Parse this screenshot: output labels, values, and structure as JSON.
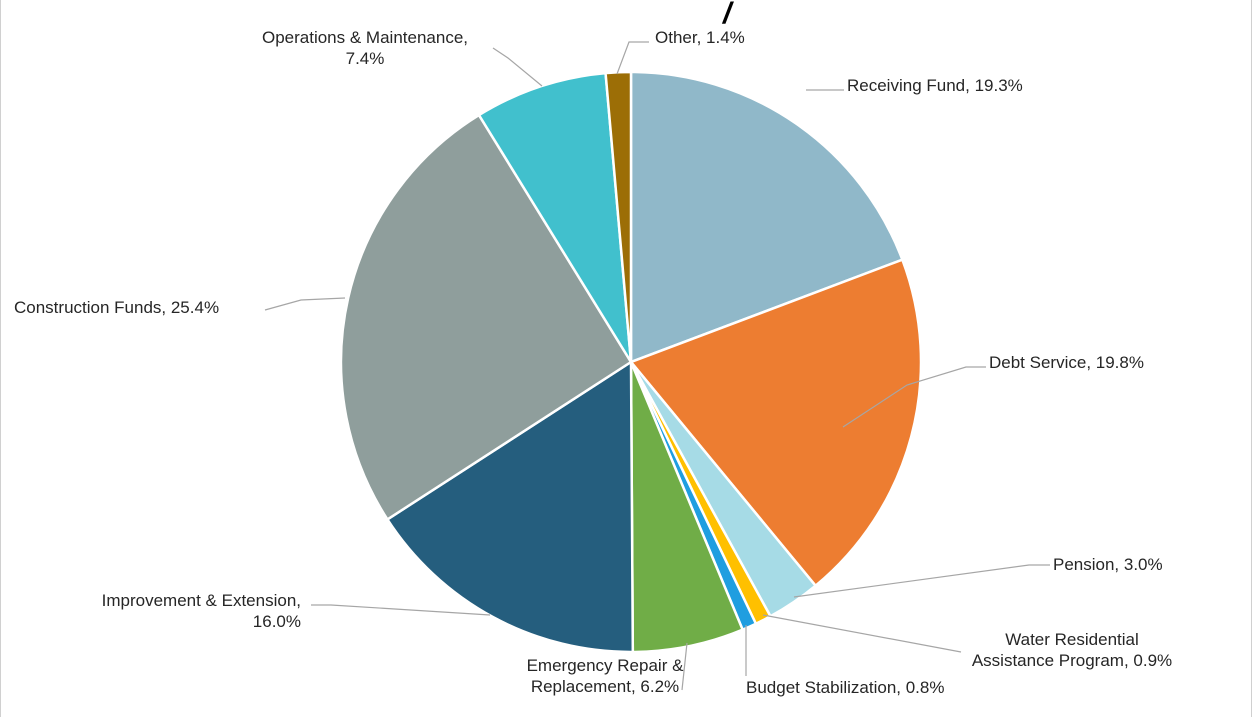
{
  "chart_data": {
    "type": "pie",
    "title_fragment": "/",
    "slices": [
      {
        "name": "Receiving Fund",
        "value": 19.3,
        "label": [
          "Receiving Fund, 19.3%"
        ],
        "color": "#90b8c9"
      },
      {
        "name": "Debt Service",
        "value": 19.8,
        "label": [
          "Debt Service, 19.8%"
        ],
        "color": "#ed7d31"
      },
      {
        "name": "Pension",
        "value": 3.0,
        "label": [
          "Pension, 3.0%"
        ],
        "color": "#a6dbe6"
      },
      {
        "name": "Water Residential Assistance Program",
        "value": 0.9,
        "label": [
          "Water Residential",
          "Assistance Program, 0.9%"
        ],
        "color": "#ffc000"
      },
      {
        "name": "Budget Stabilization",
        "value": 0.8,
        "label": [
          "Budget Stabilization, 0.8%"
        ],
        "color": "#1f9ee0"
      },
      {
        "name": "Emergency Repair & Replacement",
        "value": 6.2,
        "label": [
          "Emergency Repair &",
          "Replacement, 6.2%"
        ],
        "color": "#70ad47"
      },
      {
        "name": "Improvement & Extension",
        "value": 16.0,
        "label": [
          "Improvement & Extension,",
          "16.0%"
        ],
        "color": "#255e7e"
      },
      {
        "name": "Construction Funds",
        "value": 25.4,
        "label": [
          "Construction Funds, 25.4%"
        ],
        "color": "#8f9e9c"
      },
      {
        "name": "Operations & Maintenance",
        "value": 7.4,
        "label": [
          "Operations & Maintenance,",
          "7.4%"
        ],
        "color": "#41c0cd"
      },
      {
        "name": "Other",
        "value": 1.4,
        "label": [
          "Other, 1.4%"
        ],
        "color": "#9c6e06"
      }
    ]
  }
}
